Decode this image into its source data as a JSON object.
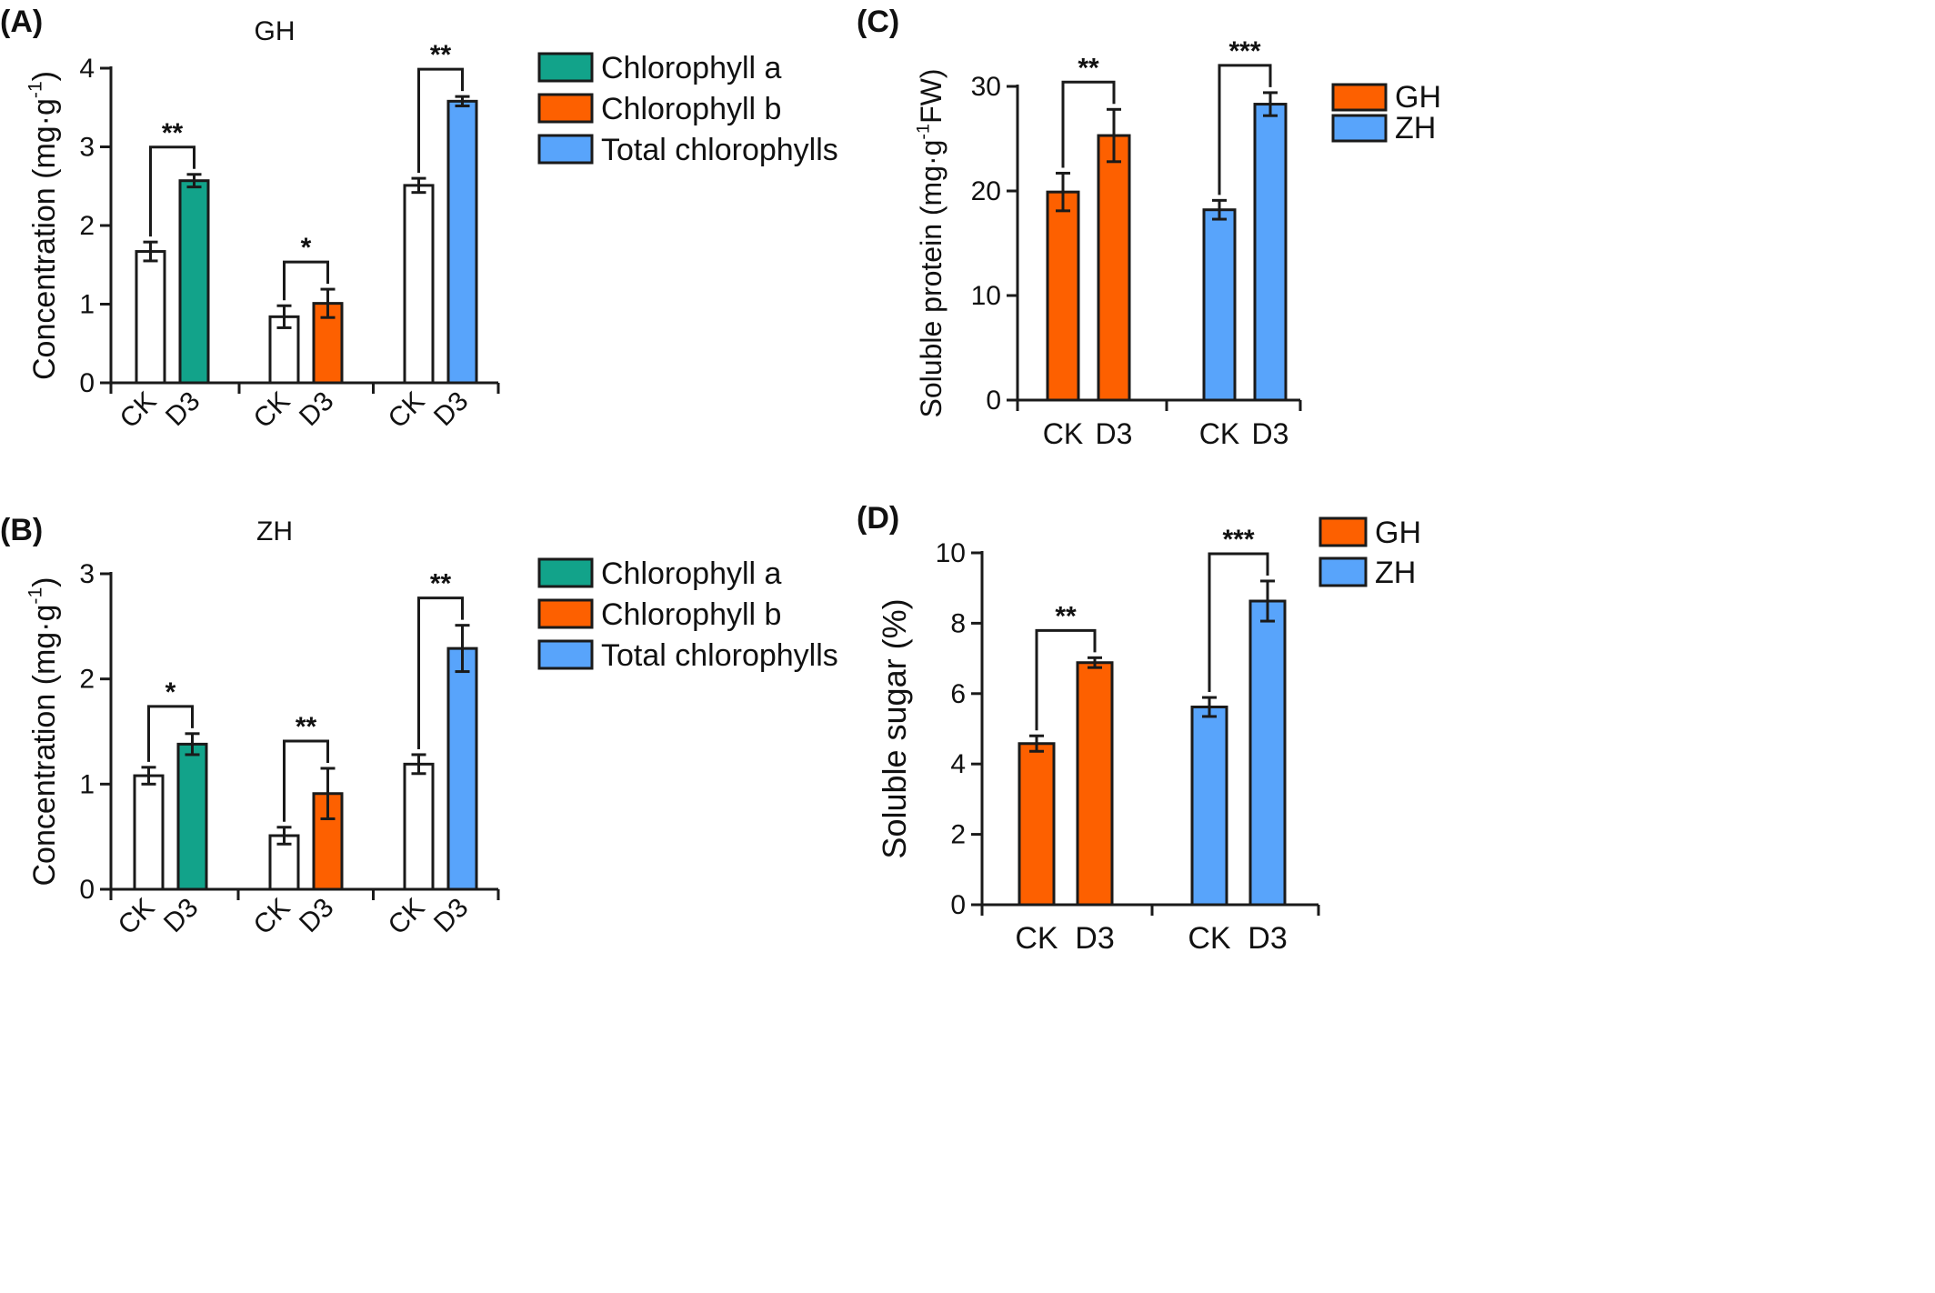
{
  "chart_data": [
    {
      "id": "A",
      "type": "bar",
      "panel_label": "(A)",
      "title": "GH",
      "ylabel": "Concentration (mg·g-1)",
      "ylim": [
        0,
        4
      ],
      "yticks": [
        0,
        1,
        2,
        3,
        4
      ],
      "groups": [
        "Chlorophyll a",
        "Chlorophyll b",
        "Total chlorophylls"
      ],
      "categories": [
        "CK",
        "D3"
      ],
      "x_tick_rotation": "rotated",
      "values": [
        [
          1.67,
          2.57
        ],
        [
          0.84,
          1.01
        ],
        [
          2.51,
          3.58
        ]
      ],
      "errors": [
        [
          0.12,
          0.08
        ],
        [
          0.14,
          0.18
        ],
        [
          0.09,
          0.06
        ]
      ],
      "fills": [
        [
          "#ffffff",
          "#12a38a"
        ],
        [
          "#ffffff",
          "#fd6000"
        ],
        [
          "#ffffff",
          "#58a4fb"
        ]
      ],
      "significance": [
        "**",
        "*",
        "**"
      ],
      "legend": [
        {
          "label": "Chlorophyll a",
          "color": "#12a38a"
        },
        {
          "label": "Chlorophyll b",
          "color": "#fd6000"
        },
        {
          "label": "Total chlorophylls",
          "color": "#58a4fb"
        }
      ]
    },
    {
      "id": "B",
      "type": "bar",
      "panel_label": "(B)",
      "title": "ZH",
      "ylabel": "Concentration (mg·g-1)",
      "ylim": [
        0,
        3
      ],
      "yticks": [
        0,
        1,
        2,
        3
      ],
      "groups": [
        "Chlorophyll a",
        "Chlorophyll b",
        "Total chlorophylls"
      ],
      "categories": [
        "CK",
        "D3"
      ],
      "x_tick_rotation": "rotated",
      "values": [
        [
          1.08,
          1.38
        ],
        [
          0.51,
          0.91
        ],
        [
          1.19,
          2.29
        ]
      ],
      "errors": [
        [
          0.08,
          0.1
        ],
        [
          0.08,
          0.24
        ],
        [
          0.09,
          0.22
        ]
      ],
      "fills": [
        [
          "#ffffff",
          "#12a38a"
        ],
        [
          "#ffffff",
          "#fd6000"
        ],
        [
          "#ffffff",
          "#58a4fb"
        ]
      ],
      "significance": [
        "*",
        "**",
        "**"
      ],
      "legend": [
        {
          "label": "Chlorophyll a",
          "color": "#12a38a"
        },
        {
          "label": "Chlorophyll b",
          "color": "#fd6000"
        },
        {
          "label": "Total chlorophylls",
          "color": "#58a4fb"
        }
      ]
    },
    {
      "id": "C",
      "type": "bar",
      "panel_label": "(C)",
      "title": "",
      "ylabel": "Soluble protein (mg·g-1FW)",
      "ylim": [
        0,
        30
      ],
      "yticks": [
        0,
        10,
        20,
        30
      ],
      "groups": [
        "GH",
        "ZH"
      ],
      "categories": [
        "CK",
        "D3"
      ],
      "x_tick_rotation": "horizontal",
      "values": [
        [
          19.9,
          25.3
        ],
        [
          18.2,
          28.3
        ]
      ],
      "errors": [
        [
          1.8,
          2.5
        ],
        [
          0.9,
          1.1
        ]
      ],
      "fills": [
        [
          "#fd6000",
          "#fd6000"
        ],
        [
          "#58a4fb",
          "#58a4fb"
        ]
      ],
      "significance": [
        "**",
        "***"
      ],
      "legend": [
        {
          "label": "GH",
          "color": "#fd6000"
        },
        {
          "label": "ZH",
          "color": "#58a4fb"
        }
      ]
    },
    {
      "id": "D",
      "type": "bar",
      "panel_label": "(D)",
      "title": "",
      "ylabel": "Soluble sugar (%)",
      "ylim": [
        0,
        10
      ],
      "yticks": [
        0,
        2,
        4,
        6,
        8,
        10
      ],
      "groups": [
        "GH",
        "ZH"
      ],
      "categories": [
        "CK",
        "D3"
      ],
      "x_tick_rotation": "horizontal",
      "values": [
        [
          4.58,
          6.88
        ],
        [
          5.62,
          8.63
        ]
      ],
      "errors": [
        [
          0.22,
          0.14
        ],
        [
          0.27,
          0.57
        ]
      ],
      "fills": [
        [
          "#fd6000",
          "#fd6000"
        ],
        [
          "#58a4fb",
          "#58a4fb"
        ]
      ],
      "significance": [
        "**",
        "***"
      ],
      "legend": [
        {
          "label": "GH",
          "color": "#fd6000"
        },
        {
          "label": "ZH",
          "color": "#58a4fb"
        }
      ]
    }
  ]
}
